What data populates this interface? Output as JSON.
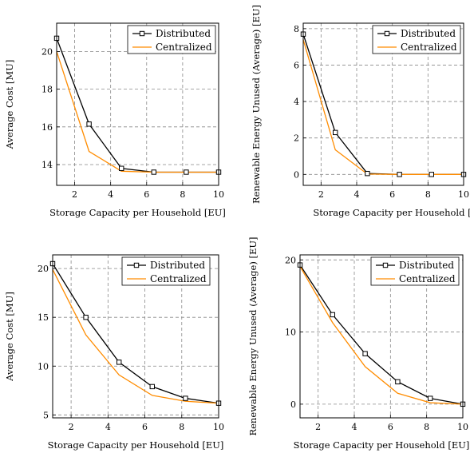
{
  "chart_data": [
    {
      "type": "line",
      "xlabel": "Storage Capacity per Household [EU]",
      "ylabel": "Average Cost [MU]",
      "xlim": [
        1,
        10
      ],
      "ylim": [
        12.9,
        21.5
      ],
      "xticks": [
        2,
        4,
        6,
        8,
        10
      ],
      "yticks": [
        14,
        16,
        18,
        20
      ],
      "grid": true,
      "legend_position": "top-right",
      "series": [
        {
          "name": "Distributed",
          "color": "#000000",
          "marker": "square",
          "x": [
            1,
            2.8,
            4.6,
            6.4,
            8.2,
            10
          ],
          "y": [
            20.7,
            16.15,
            13.8,
            13.6,
            13.6,
            13.6
          ]
        },
        {
          "name": "Centralized",
          "color": "#ff8c00",
          "marker": "none",
          "x": [
            1,
            2.8,
            4.6,
            6.4,
            8.2,
            10
          ],
          "y": [
            20.0,
            14.7,
            13.65,
            13.6,
            13.6,
            13.6
          ]
        }
      ]
    },
    {
      "type": "line",
      "xlabel": "Storage Capacity per Household [EU",
      "ylabel": "Renewable Energy Unused (Average) [EU]",
      "xlim": [
        1,
        10
      ],
      "ylim": [
        -0.6,
        8.3
      ],
      "xticks": [
        2,
        4,
        6,
        8,
        10
      ],
      "yticks": [
        0,
        2,
        4,
        6,
        8
      ],
      "grid": true,
      "legend_position": "top-right",
      "series": [
        {
          "name": "Distributed",
          "color": "#000000",
          "marker": "square",
          "x": [
            1,
            2.8,
            4.6,
            6.4,
            8.2,
            10
          ],
          "y": [
            7.7,
            2.3,
            0.05,
            0.0,
            0.0,
            0.0
          ]
        },
        {
          "name": "Centralized",
          "color": "#ff8c00",
          "marker": "none",
          "x": [
            1,
            2.8,
            4.6,
            6.4,
            8.2,
            10
          ],
          "y": [
            7.4,
            1.35,
            0.02,
            0.0,
            0.0,
            0.0
          ]
        }
      ]
    },
    {
      "type": "line",
      "xlabel": "Storage Capacity per Household [EU]",
      "ylabel": "Average Cost [MU]",
      "xlim": [
        1,
        10
      ],
      "ylim": [
        4.7,
        21.4
      ],
      "xticks": [
        2,
        4,
        6,
        8,
        10
      ],
      "yticks": [
        5,
        10,
        15,
        20
      ],
      "grid": true,
      "legend_position": "top-right",
      "series": [
        {
          "name": "Distributed",
          "color": "#000000",
          "marker": "square",
          "x": [
            1,
            2.8,
            4.6,
            6.4,
            8.2,
            10
          ],
          "y": [
            20.5,
            15.0,
            10.4,
            7.9,
            6.7,
            6.2
          ]
        },
        {
          "name": "Centralized",
          "color": "#ff8c00",
          "marker": "none",
          "x": [
            1,
            2.8,
            4.6,
            6.4,
            8.2,
            10
          ],
          "y": [
            19.9,
            13.2,
            9.1,
            7.0,
            6.4,
            6.2
          ]
        }
      ]
    },
    {
      "type": "line",
      "xlabel": "Storage Capacity per Household [EU]",
      "ylabel": "Renewable Energy Unused (Average) [EU]",
      "xlim": [
        1,
        10
      ],
      "ylim": [
        -1.9,
        20.7
      ],
      "xticks": [
        2,
        4,
        6,
        8,
        10
      ],
      "yticks": [
        0,
        10,
        20
      ],
      "grid": true,
      "legend_position": "top-right",
      "series": [
        {
          "name": "Distributed",
          "color": "#000000",
          "marker": "square",
          "x": [
            1,
            2.8,
            4.6,
            6.4,
            8.2,
            10
          ],
          "y": [
            19.3,
            12.4,
            7.0,
            3.1,
            0.8,
            0.0
          ]
        },
        {
          "name": "Centralized",
          "color": "#ff8c00",
          "marker": "none",
          "x": [
            1,
            2.8,
            4.6,
            6.4,
            8.2,
            10
          ],
          "y": [
            19.1,
            11.3,
            5.2,
            1.5,
            0.2,
            0.0
          ]
        }
      ]
    }
  ]
}
